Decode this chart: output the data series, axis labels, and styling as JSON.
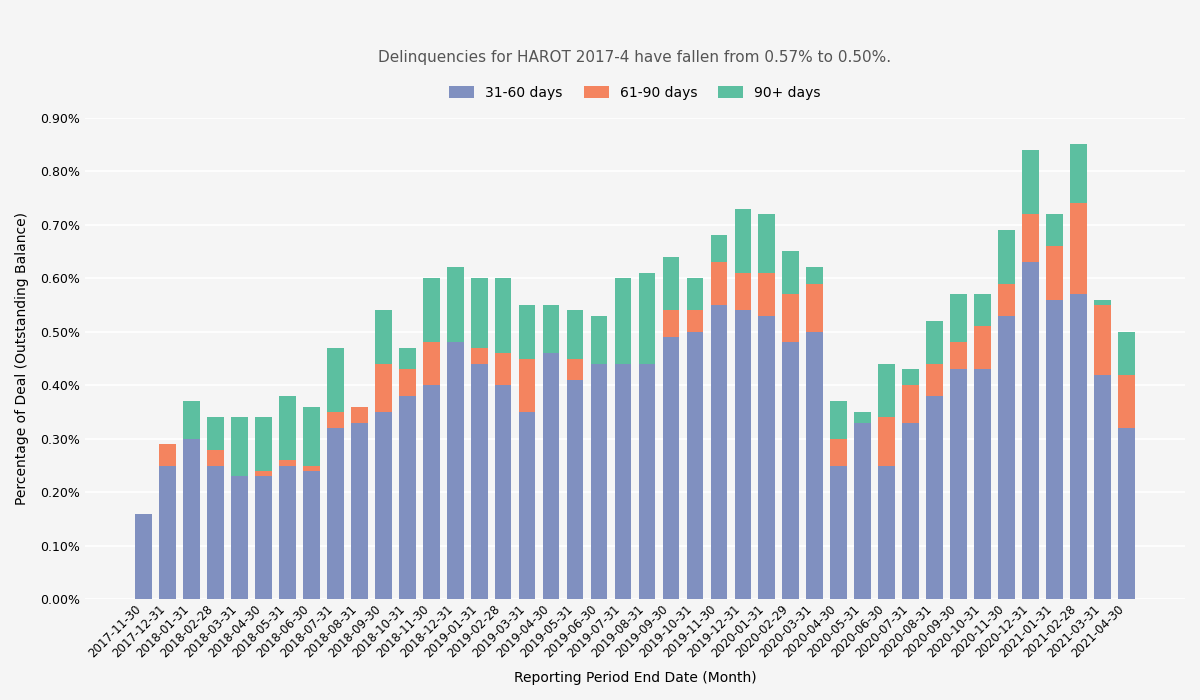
{
  "title": "Delinquencies for HAROT 2017-4 have fallen from 0.57% to 0.50%.",
  "xlabel": "Reporting Period End Date (Month)",
  "ylabel": "Percentage of Deal (Outstanding Balance)",
  "legend_labels": [
    "31-60 days",
    "61-90 days",
    "90+ days"
  ],
  "colors": [
    "#8090c0",
    "#f4845f",
    "#5cbfa0"
  ],
  "background_color": "#f5f5f5",
  "dates": [
    "2017-11-30",
    "2017-12-31",
    "2018-01-31",
    "2018-02-28",
    "2018-03-31",
    "2018-04-30",
    "2018-05-31",
    "2018-06-30",
    "2018-07-31",
    "2018-08-31",
    "2018-09-30",
    "2018-10-31",
    "2018-11-30",
    "2018-12-31",
    "2019-01-31",
    "2019-02-28",
    "2019-03-31",
    "2019-04-30",
    "2019-05-31",
    "2019-06-30",
    "2019-07-31",
    "2019-08-31",
    "2019-09-30",
    "2019-10-31",
    "2019-11-30",
    "2019-12-31",
    "2020-01-31",
    "2020-02-29",
    "2020-03-31",
    "2020-04-30",
    "2020-05-31",
    "2020-06-30",
    "2020-07-31",
    "2020-08-31",
    "2020-09-30",
    "2020-10-31",
    "2020-11-30",
    "2020-12-31",
    "2021-01-31",
    "2021-02-28",
    "2021-03-31",
    "2021-04-30"
  ],
  "values_31_60": [
    0.0016,
    0.0025,
    0.003,
    0.0025,
    0.0023,
    0.0023,
    0.0025,
    0.0024,
    0.0032,
    0.0033,
    0.0035,
    0.0038,
    0.004,
    0.0048,
    0.0044,
    0.004,
    0.0035,
    0.0046,
    0.0041,
    0.0044,
    0.0044,
    0.0044,
    0.0049,
    0.005,
    0.0055,
    0.0054,
    0.0053,
    0.0048,
    0.005,
    0.0025,
    0.0033,
    0.0025,
    0.0033,
    0.0038,
    0.0043,
    0.0043,
    0.0053,
    0.0063,
    0.0056,
    0.0057,
    0.0042,
    0.0032
  ],
  "values_61_90": [
    0.0,
    0.0004,
    0.0,
    0.0003,
    0.0,
    0.0001,
    0.0001,
    0.0001,
    0.0003,
    0.0003,
    0.0009,
    0.0005,
    0.0008,
    0.0,
    0.0003,
    0.0006,
    0.001,
    0.0,
    0.0004,
    0.0,
    0.0,
    0.0,
    0.0005,
    0.0004,
    0.0008,
    0.0007,
    0.0008,
    0.0009,
    0.0009,
    0.0005,
    0.0,
    0.0009,
    0.0007,
    0.0006,
    0.0005,
    0.0008,
    0.0006,
    0.0009,
    0.001,
    0.0017,
    0.0013,
    0.001
  ],
  "values_90plus": [
    0.0,
    0.0,
    0.0007,
    0.0006,
    0.0011,
    0.001,
    0.0012,
    0.0011,
    0.0012,
    0.0,
    0.001,
    0.0004,
    0.0012,
    0.0014,
    0.0013,
    0.0014,
    0.001,
    0.0009,
    0.0009,
    0.0009,
    0.0016,
    0.0017,
    0.001,
    0.0006,
    0.0005,
    0.0012,
    0.0011,
    0.0008,
    0.0003,
    0.0007,
    0.0002,
    0.001,
    0.0003,
    0.0008,
    0.0009,
    0.0006,
    0.001,
    0.0012,
    0.0006,
    0.0011,
    0.0001,
    0.0008
  ],
  "ylim_max": 0.009,
  "ytick_step": 0.001
}
